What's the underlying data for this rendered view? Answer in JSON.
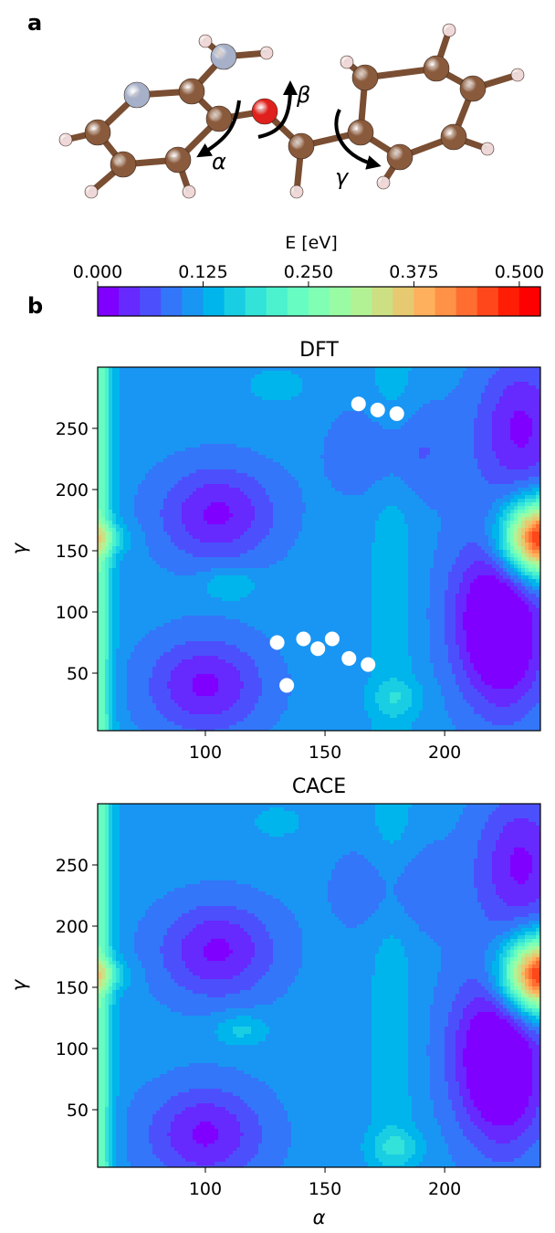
{
  "panel_labels": {
    "a": "a",
    "b": "b"
  },
  "molecule": {
    "torsion_labels": {
      "alpha": "α",
      "beta": "β",
      "gamma": "γ"
    },
    "atom_colors": {
      "carbon": "#8a5a3c",
      "nitrogen": "#a6b0c8",
      "oxygen": "#e0201c",
      "hydrogen": "#f0d8d8",
      "bond": "#7a4e32"
    }
  },
  "colorbar": {
    "label": "E [eV]",
    "ticks": [
      "0.000",
      "0.125",
      "0.250",
      "0.375",
      "0.500"
    ],
    "tick_values": [
      0.0,
      0.125,
      0.25,
      0.375,
      0.5
    ],
    "range": [
      0.0,
      0.525
    ],
    "levels": 20,
    "colormap": "rainbow",
    "colors": [
      "#7f00ff",
      "#6629fe",
      "#4c50fc",
      "#3376f9",
      "#1996f3",
      "#00b5eb",
      "#19cee3",
      "#33e2d9",
      "#4cf2ce",
      "#66fcc2",
      "#80ffb4",
      "#99fca4",
      "#b3f294",
      "#ccdf83",
      "#e6c970",
      "#ffb05c",
      "#ff9246",
      "#ff6d31",
      "#ff471b",
      "#ff1e05",
      "#ff0000"
    ]
  },
  "chart_data": [
    {
      "type": "heatmap",
      "title": "DFT",
      "xlabel": "",
      "ylabel": "γ",
      "xlim": [
        55,
        240
      ],
      "ylim": [
        3,
        300
      ],
      "xticks": [
        "100",
        "150",
        "200"
      ],
      "xtick_values": [
        100,
        150,
        200
      ],
      "yticks": [
        "50",
        "100",
        "150",
        "200",
        "250"
      ],
      "ytick_values": [
        50,
        100,
        150,
        200,
        250
      ],
      "minima": [
        {
          "alpha": 105,
          "gamma": 180,
          "energy": 0.02
        },
        {
          "alpha": 100,
          "gamma": 40,
          "energy": 0.02
        },
        {
          "alpha": 225,
          "gamma": 70,
          "energy": 0.015
        },
        {
          "alpha": 232,
          "gamma": 250,
          "energy": 0.02
        },
        {
          "alpha": 180,
          "gamma": 230,
          "energy": 0.06
        },
        {
          "alpha": 220,
          "gamma": 110,
          "energy": 0.03
        }
      ],
      "maxima": [
        {
          "alpha": 240,
          "gamma": 160,
          "energy": 0.5
        },
        {
          "alpha": 55,
          "gamma": 160,
          "energy": 0.22
        },
        {
          "alpha": 110,
          "gamma": 122,
          "energy": 0.16
        },
        {
          "alpha": 130,
          "gamma": 285,
          "energy": 0.15
        },
        {
          "alpha": 180,
          "gamma": 30,
          "energy": 0.15
        }
      ],
      "points": [
        {
          "alpha": 164,
          "gamma": 270
        },
        {
          "alpha": 172,
          "gamma": 265
        },
        {
          "alpha": 180,
          "gamma": 262
        },
        {
          "alpha": 130,
          "gamma": 75
        },
        {
          "alpha": 141,
          "gamma": 78
        },
        {
          "alpha": 147,
          "gamma": 70
        },
        {
          "alpha": 153,
          "gamma": 78
        },
        {
          "alpha": 160,
          "gamma": 62
        },
        {
          "alpha": 168,
          "gamma": 57
        },
        {
          "alpha": 134,
          "gamma": 40
        }
      ]
    },
    {
      "type": "heatmap",
      "title": "CACE",
      "xlabel": "α",
      "ylabel": "γ",
      "xlim": [
        55,
        240
      ],
      "ylim": [
        3,
        300
      ],
      "xticks": [
        "100",
        "150",
        "200"
      ],
      "xtick_values": [
        100,
        150,
        200
      ],
      "yticks": [
        "50",
        "100",
        "150",
        "200",
        "250"
      ],
      "ytick_values": [
        50,
        100,
        150,
        200,
        250
      ],
      "minima": [
        {
          "alpha": 105,
          "gamma": 180,
          "energy": 0.02
        },
        {
          "alpha": 100,
          "gamma": 30,
          "energy": 0.02
        },
        {
          "alpha": 225,
          "gamma": 70,
          "energy": 0.015
        },
        {
          "alpha": 232,
          "gamma": 250,
          "energy": 0.02
        },
        {
          "alpha": 180,
          "gamma": 230,
          "energy": 0.07
        },
        {
          "alpha": 220,
          "gamma": 110,
          "energy": 0.03
        }
      ],
      "maxima": [
        {
          "alpha": 240,
          "gamma": 160,
          "energy": 0.5
        },
        {
          "alpha": 55,
          "gamma": 160,
          "energy": 0.22
        },
        {
          "alpha": 115,
          "gamma": 115,
          "energy": 0.16
        },
        {
          "alpha": 130,
          "gamma": 285,
          "energy": 0.14
        },
        {
          "alpha": 180,
          "gamma": 20,
          "energy": 0.16
        }
      ],
      "points": []
    }
  ]
}
